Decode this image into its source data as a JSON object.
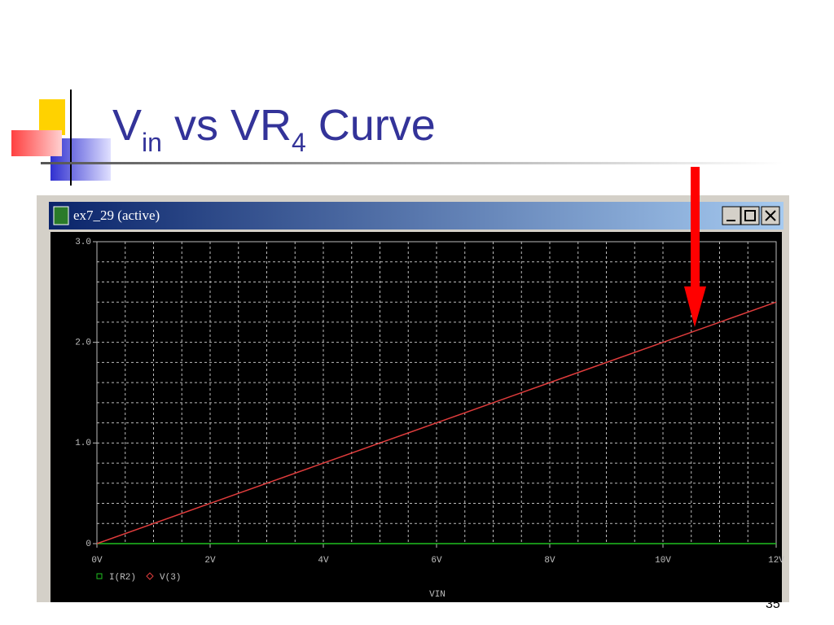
{
  "slide": {
    "title": [
      "V",
      "in",
      " vs VR",
      "4",
      " Curve"
    ],
    "page_number": "35"
  },
  "window": {
    "title": "ex7_29 (active)"
  },
  "chart_data": {
    "type": "line",
    "x_label": "VIN",
    "x": [
      0,
      2,
      4,
      6,
      8,
      10,
      12
    ],
    "series": [
      {
        "name": "I(R2)",
        "color": "#20c020",
        "values": [
          0,
          0,
          0,
          0,
          0,
          0,
          0
        ]
      },
      {
        "name": "V(3)",
        "color": "#e03c3c",
        "values": [
          0,
          0.4,
          0.8,
          1.2,
          1.6,
          2.0,
          2.4
        ]
      }
    ],
    "xlim": [
      0,
      12
    ],
    "xticks": [
      {
        "value": 0,
        "label": "0V"
      },
      {
        "value": 2,
        "label": "2V"
      },
      {
        "value": 4,
        "label": "4V"
      },
      {
        "value": 6,
        "label": "6V"
      },
      {
        "value": 8,
        "label": "8V"
      },
      {
        "value": 10,
        "label": "10V"
      },
      {
        "value": 12,
        "label": "12V"
      }
    ],
    "ylim": [
      0,
      3
    ],
    "yticks": [
      0,
      {
        "value": 1,
        "label": "1.0"
      },
      {
        "value": 2,
        "label": "2.0"
      },
      {
        "value": 3,
        "label": "3.0"
      }
    ],
    "grid": true
  }
}
